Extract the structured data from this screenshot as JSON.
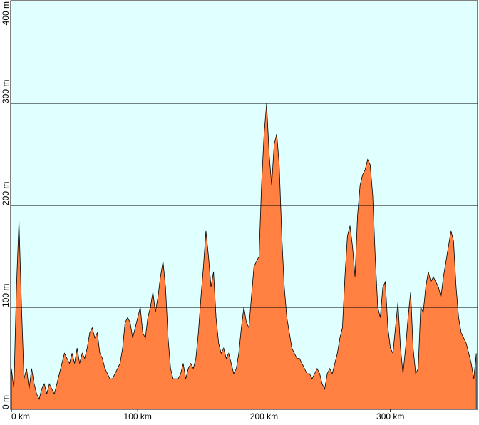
{
  "chart_data": {
    "type": "area",
    "color": "#ff8040",
    "background": "#e0ffff",
    "grid": true,
    "xlim": [
      0,
      369
    ],
    "ylim": [
      0,
      400
    ],
    "xticks": [
      {
        "value": 0,
        "label": "0 km"
      },
      {
        "value": 100,
        "label": "100 km"
      },
      {
        "value": 200,
        "label": "200 km"
      },
      {
        "value": 300,
        "label": "300 km"
      }
    ],
    "yticks": [
      {
        "value": 0,
        "label": "0 m"
      },
      {
        "value": 100,
        "label": "100 m"
      },
      {
        "value": 200,
        "label": "200 m"
      },
      {
        "value": 300,
        "label": "300 m"
      },
      {
        "value": 400,
        "label": "400 m"
      }
    ],
    "x": [
      0,
      2,
      4,
      6,
      8,
      10,
      12,
      14,
      16,
      18,
      20,
      22,
      24,
      26,
      28,
      30,
      32,
      34,
      36,
      38,
      40,
      42,
      44,
      46,
      48,
      50,
      52,
      54,
      56,
      58,
      60,
      62,
      64,
      66,
      68,
      70,
      72,
      74,
      76,
      78,
      80,
      82,
      84,
      86,
      88,
      90,
      92,
      94,
      96,
      98,
      100,
      102,
      104,
      106,
      108,
      110,
      112,
      114,
      116,
      118,
      120,
      122,
      124,
      126,
      128,
      130,
      132,
      134,
      136,
      138,
      140,
      142,
      144,
      146,
      148,
      150,
      152,
      154,
      156,
      158,
      160,
      162,
      164,
      166,
      168,
      170,
      172,
      174,
      176,
      178,
      180,
      182,
      184,
      186,
      188,
      190,
      192,
      194,
      196,
      198,
      200,
      202,
      204,
      206,
      208,
      210,
      212,
      214,
      216,
      218,
      220,
      222,
      224,
      226,
      228,
      230,
      232,
      234,
      236,
      238,
      240,
      242,
      244,
      246,
      248,
      250,
      252,
      254,
      256,
      258,
      260,
      262,
      264,
      266,
      268,
      270,
      272,
      274,
      276,
      278,
      280,
      282,
      284,
      286,
      288,
      290,
      292,
      294,
      296,
      298,
      300,
      302,
      304,
      306,
      308,
      310,
      312,
      314,
      316,
      318,
      320,
      322,
      324,
      326,
      328,
      330,
      332,
      334,
      336,
      338,
      340,
      342,
      344,
      346,
      348,
      350,
      352,
      354,
      356,
      358,
      360,
      362,
      364,
      366,
      368
    ],
    "values": [
      40,
      20,
      120,
      185,
      100,
      30,
      40,
      20,
      40,
      25,
      15,
      10,
      20,
      25,
      15,
      25,
      20,
      15,
      25,
      35,
      45,
      55,
      50,
      45,
      55,
      45,
      60,
      45,
      55,
      50,
      60,
      75,
      80,
      70,
      75,
      55,
      50,
      40,
      35,
      30,
      30,
      35,
      40,
      45,
      60,
      85,
      90,
      85,
      70,
      80,
      90,
      100,
      75,
      70,
      90,
      100,
      115,
      95,
      110,
      130,
      145,
      120,
      70,
      40,
      30,
      30,
      30,
      35,
      45,
      30,
      40,
      45,
      40,
      50,
      75,
      110,
      140,
      175,
      150,
      120,
      135,
      90,
      65,
      55,
      60,
      50,
      55,
      45,
      35,
      40,
      55,
      80,
      100,
      85,
      80,
      110,
      140,
      145,
      150,
      220,
      270,
      300,
      250,
      220,
      260,
      270,
      240,
      170,
      120,
      90,
      75,
      60,
      55,
      50,
      50,
      45,
      40,
      35,
      35,
      30,
      35,
      40,
      35,
      25,
      20,
      35,
      40,
      35,
      45,
      55,
      70,
      80,
      130,
      170,
      180,
      160,
      130,
      190,
      220,
      230,
      235,
      245,
      240,
      210,
      150,
      100,
      90,
      120,
      125,
      80,
      60,
      55,
      80,
      105,
      60,
      35,
      60,
      90,
      115,
      60,
      35,
      40,
      100,
      95,
      120,
      135,
      125,
      130,
      125,
      120,
      110,
      130,
      145,
      160,
      175,
      165,
      120,
      90,
      75,
      70,
      65,
      55,
      45,
      30,
      55
    ]
  }
}
